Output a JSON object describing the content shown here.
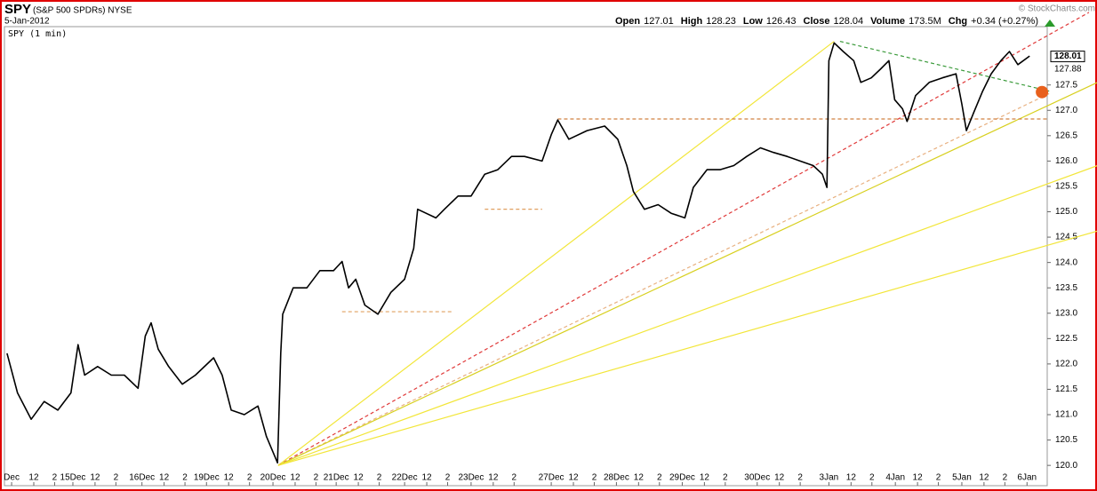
{
  "chart_data": {
    "type": "line",
    "title": "SPY",
    "subtitle": "(S&P 500 SPDRs) NYSE",
    "date": "5-Jan-2012",
    "panel_label": "SPY (1 min)",
    "watermark": "© StockCharts.com",
    "quote": [
      {
        "label": "Open",
        "value": "127.01"
      },
      {
        "label": "High",
        "value": "128.23"
      },
      {
        "label": "Low",
        "value": "126.43"
      },
      {
        "label": "Close",
        "value": "128.04"
      },
      {
        "label": "Volume",
        "value": "173.5M"
      },
      {
        "label": "Chg",
        "value": "+0.34 (+0.27%)"
      }
    ],
    "xlim": [
      0,
      16.0
    ],
    "ylim": [
      119.6,
      128.65
    ],
    "xticks": [
      {
        "value": 0.11,
        "label": "Dec"
      },
      {
        "value": 0.45,
        "label": "12"
      },
      {
        "value": 0.77,
        "label": "2"
      },
      {
        "value": 1.05,
        "label": "15Dec"
      },
      {
        "value": 1.39,
        "label": "12"
      },
      {
        "value": 1.71,
        "label": "2"
      },
      {
        "value": 2.11,
        "label": "16Dec"
      },
      {
        "value": 2.45,
        "label": "12"
      },
      {
        "value": 2.77,
        "label": "2"
      },
      {
        "value": 3.1,
        "label": "19Dec"
      },
      {
        "value": 3.44,
        "label": "12"
      },
      {
        "value": 3.76,
        "label": "2"
      },
      {
        "value": 4.12,
        "label": "20Dec"
      },
      {
        "value": 4.46,
        "label": "12"
      },
      {
        "value": 4.78,
        "label": "2"
      },
      {
        "value": 5.09,
        "label": "21Dec"
      },
      {
        "value": 5.43,
        "label": "12"
      },
      {
        "value": 5.75,
        "label": "2"
      },
      {
        "value": 6.14,
        "label": "22Dec"
      },
      {
        "value": 6.48,
        "label": "12"
      },
      {
        "value": 6.8,
        "label": "2"
      },
      {
        "value": 7.16,
        "label": "23Dec"
      },
      {
        "value": 7.5,
        "label": "12"
      },
      {
        "value": 7.82,
        "label": "2"
      },
      {
        "value": 8.39,
        "label": "27Dec"
      },
      {
        "value": 8.73,
        "label": "12"
      },
      {
        "value": 9.05,
        "label": "2"
      },
      {
        "value": 9.39,
        "label": "28Dec"
      },
      {
        "value": 9.73,
        "label": "12"
      },
      {
        "value": 10.05,
        "label": "2"
      },
      {
        "value": 10.4,
        "label": "29Dec"
      },
      {
        "value": 10.74,
        "label": "12"
      },
      {
        "value": 11.06,
        "label": "2"
      },
      {
        "value": 11.55,
        "label": "30Dec"
      },
      {
        "value": 11.89,
        "label": "12"
      },
      {
        "value": 12.21,
        "label": "2"
      },
      {
        "value": 12.65,
        "label": "3Jan"
      },
      {
        "value": 12.99,
        "label": "12"
      },
      {
        "value": 13.31,
        "label": "2"
      },
      {
        "value": 13.67,
        "label": "4Jan"
      },
      {
        "value": 14.01,
        "label": "12"
      },
      {
        "value": 14.33,
        "label": "2"
      },
      {
        "value": 14.69,
        "label": "5Jan"
      },
      {
        "value": 15.03,
        "label": "12"
      },
      {
        "value": 15.35,
        "label": "2"
      },
      {
        "value": 15.69,
        "label": "6Jan"
      }
    ],
    "yticks": [
      {
        "value": 120,
        "label": "120.0"
      },
      120.5,
      {
        "value": 121,
        "label": "121.0"
      },
      121.5,
      {
        "value": 122,
        "label": "122.0"
      },
      122.5,
      {
        "value": 123,
        "label": "123.0"
      },
      123.5,
      {
        "value": 124,
        "label": "124.0"
      },
      124.5,
      {
        "value": 125,
        "label": "125.0"
      },
      125.5,
      {
        "value": 126,
        "label": "126.0"
      },
      126.5,
      {
        "value": 127,
        "label": "127.0"
      },
      127.5
    ],
    "x": [
      0.04,
      0.2,
      0.41,
      0.61,
      0.82,
      1.02,
      1.13,
      1.23,
      1.43,
      1.64,
      1.84,
      2.05,
      2.16,
      2.25,
      2.36,
      2.52,
      2.73,
      2.93,
      3.21,
      3.34,
      3.48,
      3.68,
      3.89,
      4.02,
      4.19,
      4.24,
      4.27,
      4.43,
      4.64,
      4.84,
      5.05,
      5.18,
      5.28,
      5.39,
      5.53,
      5.73,
      5.93,
      6.14,
      6.28,
      6.34,
      6.62,
      6.75,
      6.96,
      7.16,
      7.37,
      7.57,
      7.78,
      7.98,
      8.25,
      8.39,
      8.49,
      8.66,
      8.94,
      9.21,
      9.41,
      9.55,
      9.65,
      9.82,
      10.03,
      10.23,
      10.44,
      10.57,
      10.78,
      10.98,
      11.19,
      11.39,
      11.6,
      11.8,
      12.01,
      12.21,
      12.41,
      12.55,
      12.62,
      12.65,
      12.73,
      12.87,
      13.03,
      13.14,
      13.3,
      13.44,
      13.57,
      13.66,
      13.78,
      13.85,
      13.98,
      14.19,
      14.39,
      14.6,
      14.69,
      14.76,
      14.87,
      15.01,
      15.14,
      15.29,
      15.42,
      15.55,
      15.73
    ],
    "series": [
      {
        "color": "#000000",
        "values": [
          122.21,
          121.43,
          120.91,
          121.26,
          121.09,
          121.43,
          122.38,
          121.78,
          121.95,
          121.78,
          121.78,
          121.52,
          122.55,
          122.81,
          122.29,
          121.95,
          121.6,
          121.78,
          122.12,
          121.78,
          121.09,
          121.0,
          121.17,
          120.57,
          120.05,
          122.21,
          122.98,
          123.5,
          123.5,
          123.84,
          123.84,
          124.02,
          123.5,
          123.67,
          123.16,
          122.98,
          123.41,
          123.67,
          124.28,
          125.05,
          124.88,
          125.05,
          125.31,
          125.31,
          125.74,
          125.83,
          126.09,
          126.09,
          126.0,
          126.52,
          126.81,
          126.43,
          126.6,
          126.69,
          126.43,
          125.91,
          125.4,
          125.05,
          125.14,
          124.97,
          124.88,
          125.48,
          125.83,
          125.83,
          125.91,
          126.09,
          126.26,
          126.17,
          126.09,
          126.0,
          125.91,
          125.74,
          125.48,
          127.98,
          128.33,
          128.16,
          127.98,
          127.55,
          127.64,
          127.81,
          127.98,
          127.21,
          127.03,
          126.78,
          127.29,
          127.55,
          127.64,
          127.72,
          127.12,
          126.6,
          126.95,
          127.38,
          127.72,
          127.98,
          128.16,
          127.9,
          128.07
        ]
      }
    ],
    "trendlines": [
      {
        "x": [
          4.2,
          12.73
        ],
        "y": [
          120.0,
          128.36
        ],
        "color": "#f2e63a",
        "dashed": false
      },
      {
        "x": [
          4.2,
          16.64
        ],
        "y": [
          120.0,
          128.93
        ],
        "color": "#e03a3a",
        "dashed": true
      },
      {
        "x": [
          4.2,
          16.03
        ],
        "y": [
          120.0,
          127.33
        ],
        "color": "#e8b080",
        "dashed": true
      },
      {
        "x": [
          4.2,
          16.77
        ],
        "y": [
          120.0,
          127.55
        ],
        "color": "#d8d020",
        "dashed": false
      },
      {
        "x": [
          4.2,
          16.77
        ],
        "y": [
          120.0,
          125.91
        ],
        "color": "#f2e63a",
        "dashed": false
      },
      {
        "x": [
          4.2,
          16.77
        ],
        "y": [
          120.0,
          124.62
        ],
        "color": "#f2e63a",
        "dashed": false
      },
      {
        "x": [
          12.82,
          16.03
        ],
        "y": [
          128.36,
          127.38
        ],
        "color": "#3a9a3a",
        "dashed": true
      },
      {
        "x": [
          8.49,
          16.03
        ],
        "y": [
          126.83,
          126.83
        ],
        "color": "#d08040",
        "dashed": true
      },
      {
        "x": [
          7.37,
          8.25
        ],
        "y": [
          125.05,
          125.05
        ],
        "color": "#e0a060",
        "dashed": true
      },
      {
        "x": [
          5.18,
          6.89
        ],
        "y": [
          123.03,
          123.03
        ],
        "color": "#e0a060",
        "dashed": true
      }
    ],
    "marker": {
      "x": 15.92,
      "y": 127.36,
      "color": "#e8601c"
    },
    "price_labels": [
      128.01,
      127.88
    ]
  }
}
